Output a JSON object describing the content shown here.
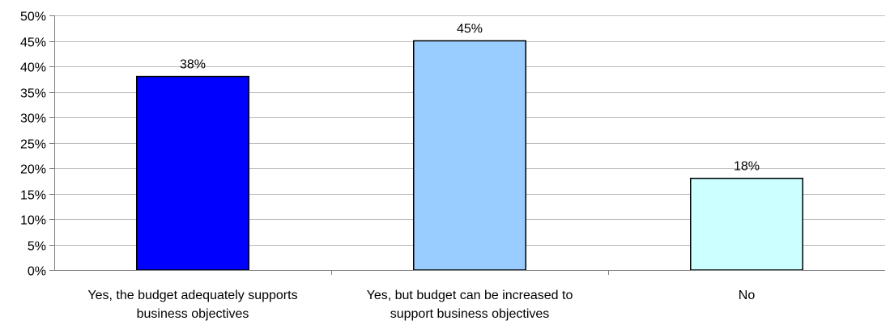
{
  "chart_data": {
    "type": "bar",
    "categories": [
      [
        "Yes, the budget adequately supports",
        "business objectives"
      ],
      [
        "Yes, but budget can be increased to",
        "support business objectives"
      ],
      [
        "No"
      ]
    ],
    "values": [
      38,
      45,
      18
    ],
    "data_labels": [
      "38%",
      "45%",
      "18%"
    ],
    "bar_colors": [
      "#0000ff",
      "#99ccff",
      "#ccffff"
    ],
    "ylim": [
      0,
      50
    ],
    "yticks": [
      "0%",
      "5%",
      "10%",
      "15%",
      "20%",
      "25%",
      "30%",
      "35%",
      "40%",
      "45%",
      "50%"
    ],
    "grid": true,
    "title": "",
    "xlabel": "",
    "ylabel": ""
  }
}
